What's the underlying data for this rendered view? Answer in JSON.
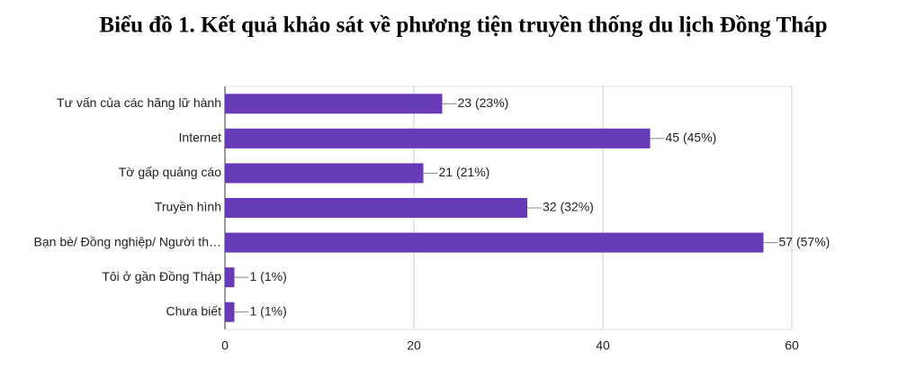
{
  "chart_data": {
    "type": "bar",
    "orientation": "horizontal",
    "title": "Biểu đồ 1. Kết quả khảo sát về phương tiện truyền thống du lịch Đồng Tháp",
    "categories": [
      "Tư vấn của các hãng lữ hành",
      "Internet",
      "Tờ gấp quảng cáo",
      "Truyền hình",
      "Bạn bè/ Đồng nghiệp/ Người th…",
      "Tôi ở gần Đồng Tháp",
      "Chưa biết"
    ],
    "values": [
      23,
      45,
      21,
      32,
      57,
      1,
      1
    ],
    "value_labels": [
      "23 (23%)",
      "45 (45%)",
      "21 (21%)",
      "32 (32%)",
      "57 (57%)",
      "1 (1%)",
      "1 (1%)"
    ],
    "color": "#673ab7",
    "xlim": [
      0,
      60
    ],
    "xticks": [
      0,
      20,
      40,
      60
    ],
    "grid": true
  }
}
